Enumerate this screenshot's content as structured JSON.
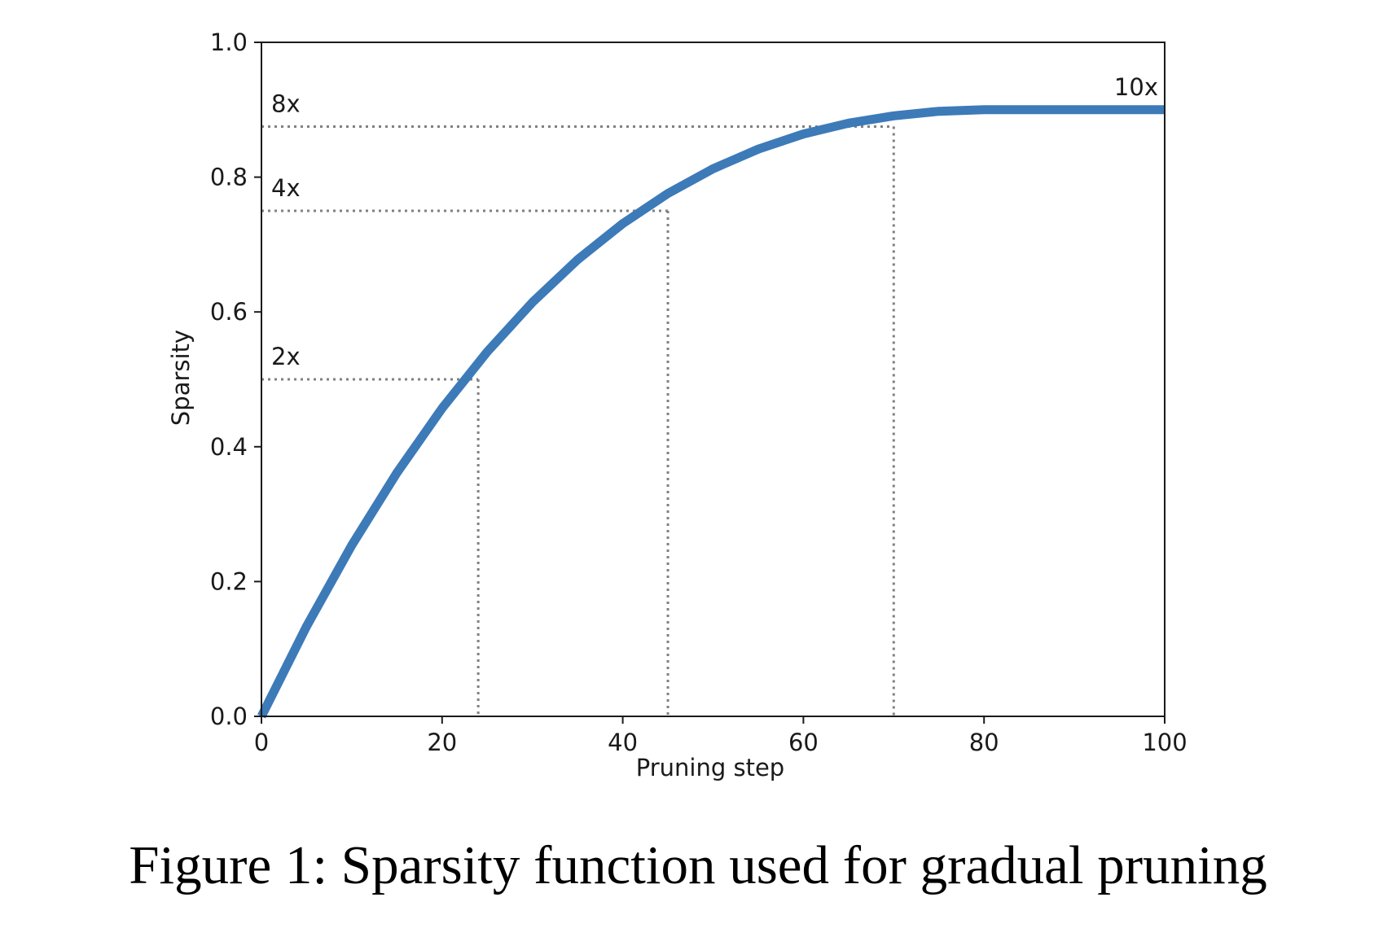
{
  "caption": "Figure 1: Sparsity function used for gradual pruning",
  "colors": {
    "curve": "#3d7ab8",
    "reference_lines": "#808080",
    "axes": "#1a1a1a",
    "background": "#ffffff"
  },
  "chart_data": {
    "type": "line",
    "title": "",
    "xlabel": "Pruning step",
    "ylabel": "Sparsity",
    "xlim": [
      0,
      100
    ],
    "ylim": [
      0.0,
      1.0
    ],
    "x_ticks": [
      0,
      20,
      40,
      60,
      80,
      100
    ],
    "x_tick_labels": [
      "0",
      "20",
      "40",
      "60",
      "80",
      "100"
    ],
    "y_ticks": [
      0.0,
      0.2,
      0.4,
      0.6,
      0.8,
      1.0
    ],
    "y_tick_labels": [
      "0.0",
      "0.2",
      "0.4",
      "0.6",
      "0.8",
      "1.0"
    ],
    "grid": false,
    "legend": "none",
    "series": [
      {
        "x": [
          0,
          5,
          10,
          15,
          20,
          25,
          30,
          35,
          40,
          45,
          50,
          55,
          60,
          65,
          70,
          75,
          80,
          85,
          90,
          95,
          100
        ],
        "y": [
          0.0,
          0.1336,
          0.2539,
          0.3615,
          0.457,
          0.541,
          0.6143,
          0.6774,
          0.731,
          0.7757,
          0.8125,
          0.8416,
          0.864,
          0.8801,
          0.891,
          0.8977,
          0.9,
          0.9,
          0.9,
          0.9,
          0.9
        ]
      }
    ],
    "reference_lines": [
      {
        "x": 24,
        "y": 0.5
      },
      {
        "x": 45,
        "y": 0.75
      },
      {
        "x": 70,
        "y": 0.875
      }
    ],
    "annotations": [
      {
        "text": "2x",
        "x": 0,
        "y": 0.5
      },
      {
        "text": "4x",
        "x": 0,
        "y": 0.75
      },
      {
        "text": "8x",
        "x": 0,
        "y": 0.875
      },
      {
        "text": "10x",
        "x": 100,
        "y": 0.9
      }
    ]
  }
}
